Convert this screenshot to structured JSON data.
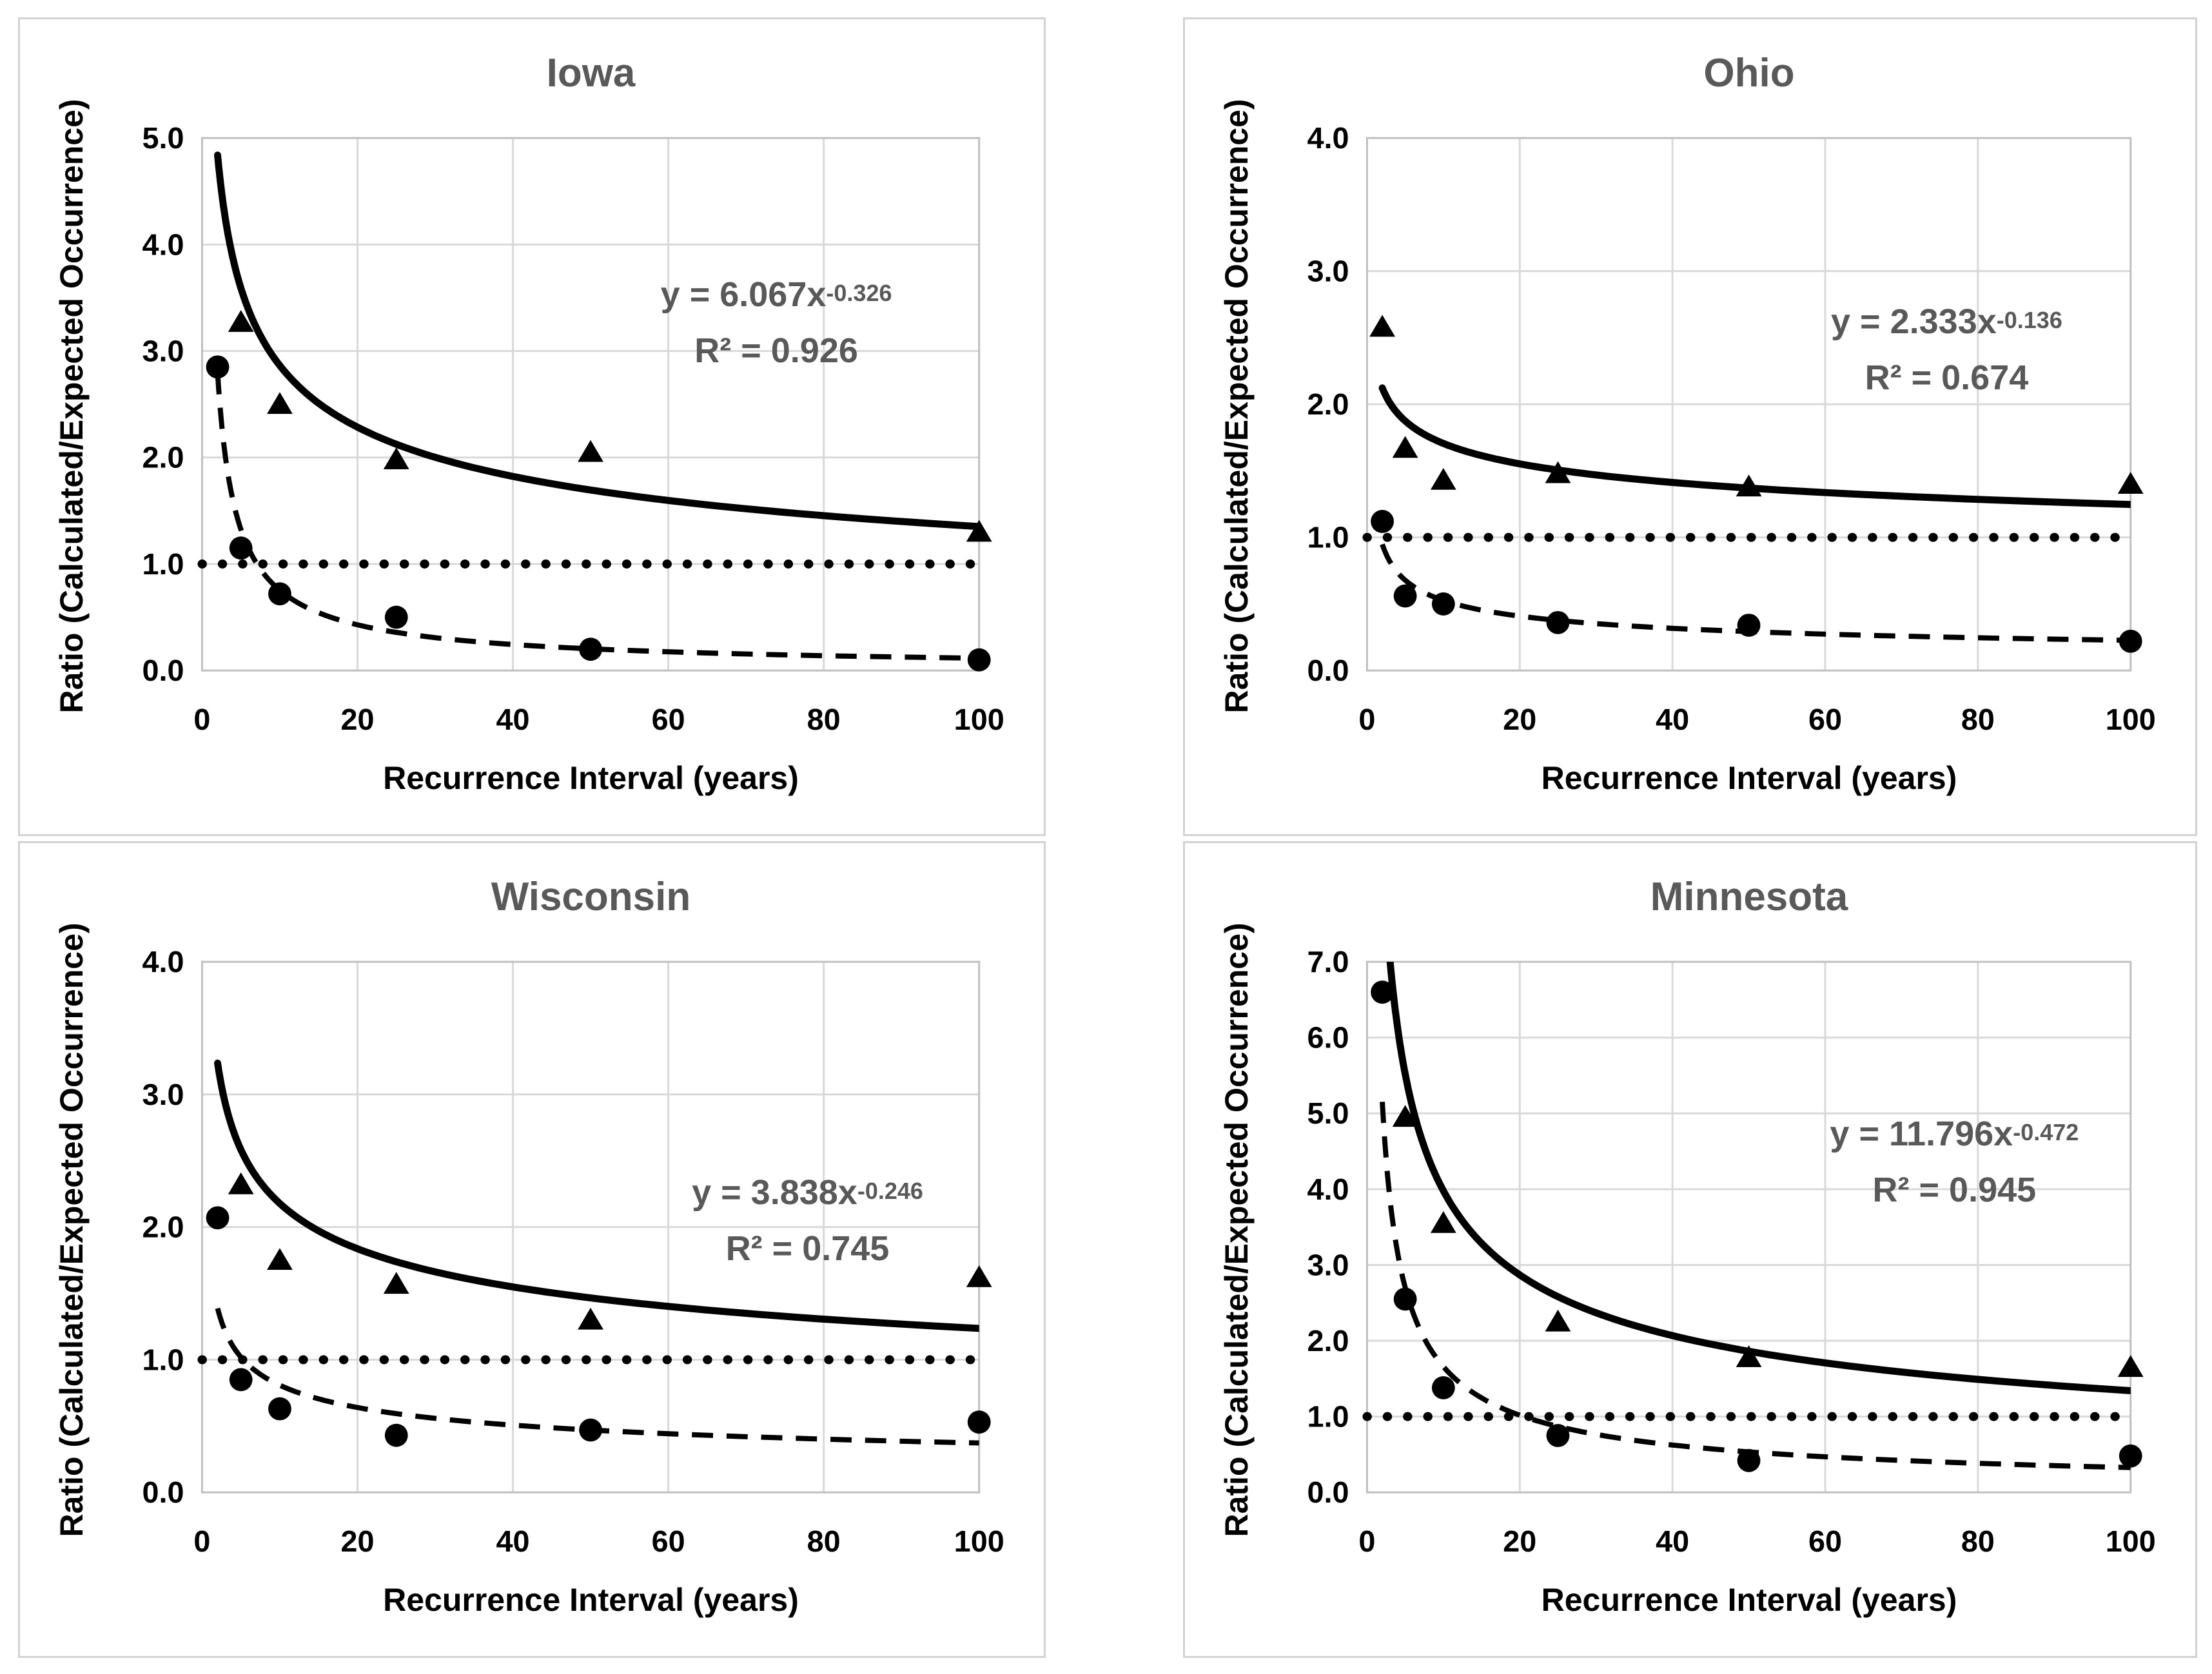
{
  "figure": {
    "background": "#ffffff",
    "panel_background": "#ffffff",
    "panel_border_color": "#d2d2d2",
    "grid_color": "#d9d9d9",
    "axis_border_color": "#bfbfbf",
    "series_color": "#000000",
    "label_color": "#000000",
    "title_color": "#595959"
  },
  "chart_data": [
    {
      "type": "scatter",
      "title": "Iowa",
      "xlabel": "Recurrence Interval (years)",
      "ylabel": "Ratio (Calculated/Expected Occurrence)",
      "xlim": [
        0,
        100
      ],
      "ylim": [
        0,
        5
      ],
      "xticks": [
        0,
        20,
        40,
        60,
        80,
        100
      ],
      "ytick_labels": [
        "0.0",
        "1.0",
        "2.0",
        "3.0",
        "4.0",
        "5.0"
      ],
      "grid": true,
      "reference_line_y": 1.0,
      "series": [
        {
          "name": "triangle-series",
          "marker": "triangle",
          "points": [
            [
              5,
              3.27
            ],
            [
              10,
              2.5
            ],
            [
              25,
              1.98
            ],
            [
              50,
              2.05
            ],
            [
              100,
              1.3
            ]
          ]
        },
        {
          "name": "circle-series",
          "marker": "circle",
          "points": [
            [
              2,
              2.85
            ],
            [
              5,
              1.15
            ],
            [
              10,
              0.72
            ],
            [
              25,
              0.5
            ],
            [
              50,
              0.2
            ],
            [
              100,
              0.1
            ]
          ]
        }
      ],
      "trendline": {
        "a": 6.067,
        "b": -0.326,
        "equation_base": "y = 6.067x",
        "equation_exponent": "-0.326",
        "r_squared": "R² = 0.926"
      }
    },
    {
      "type": "scatter",
      "title": "Ohio",
      "xlabel": "Recurrence Interval (years)",
      "ylabel": "Ratio (Calculated/Expected Occurrence)",
      "xlim": [
        0,
        100
      ],
      "ylim": [
        0,
        4
      ],
      "xticks": [
        0,
        20,
        40,
        60,
        80,
        100
      ],
      "ytick_labels": [
        "0.0",
        "1.0",
        "2.0",
        "3.0",
        "4.0"
      ],
      "grid": true,
      "reference_line_y": 1.0,
      "series": [
        {
          "name": "triangle-series",
          "marker": "triangle",
          "points": [
            [
              2,
              2.58
            ],
            [
              5,
              1.67
            ],
            [
              10,
              1.43
            ],
            [
              25,
              1.48
            ],
            [
              50,
              1.38
            ],
            [
              100,
              1.4
            ]
          ]
        },
        {
          "name": "circle-series",
          "marker": "circle",
          "points": [
            [
              2,
              1.12
            ],
            [
              5,
              0.56
            ],
            [
              10,
              0.5
            ],
            [
              25,
              0.36
            ],
            [
              50,
              0.34
            ],
            [
              100,
              0.22
            ]
          ]
        }
      ],
      "trendline": {
        "a": 2.333,
        "b": -0.136,
        "equation_base": "y = 2.333x",
        "equation_exponent": "-0.136",
        "r_squared": "R² = 0.674"
      }
    },
    {
      "type": "scatter",
      "title": "Wisconsin",
      "xlabel": "Recurrence Interval (years)",
      "ylabel": "Ratio (Calculated/Expected Occurrence)",
      "xlim": [
        0,
        100
      ],
      "ylim": [
        0,
        4
      ],
      "xticks": [
        0,
        20,
        40,
        60,
        80,
        100
      ],
      "ytick_labels": [
        "0.0",
        "1.0",
        "2.0",
        "3.0",
        "4.0"
      ],
      "grid": true,
      "reference_line_y": 1.0,
      "series": [
        {
          "name": "triangle-series",
          "marker": "triangle",
          "points": [
            [
              5,
              2.32
            ],
            [
              10,
              1.75
            ],
            [
              25,
              1.57
            ],
            [
              50,
              1.3
            ],
            [
              100,
              1.62
            ]
          ]
        },
        {
          "name": "circle-series",
          "marker": "circle",
          "points": [
            [
              2,
              2.07
            ],
            [
              5,
              0.85
            ],
            [
              10,
              0.63
            ],
            [
              25,
              0.43
            ],
            [
              50,
              0.47
            ],
            [
              100,
              0.53
            ]
          ]
        }
      ],
      "trendline": {
        "a": 3.838,
        "b": -0.246,
        "equation_base": "y = 3.838x",
        "equation_exponent": "-0.246",
        "r_squared": "R² = 0.745"
      }
    },
    {
      "type": "scatter",
      "title": "Minnesota",
      "xlabel": "Recurrence Interval (years)",
      "ylabel": "Ratio (Calculated/Expected Occurrence)",
      "xlim": [
        0,
        100
      ],
      "ylim": [
        0,
        7
      ],
      "xticks": [
        0,
        20,
        40,
        60,
        80,
        100
      ],
      "ytick_labels": [
        "0.0",
        "1.0",
        "2.0",
        "3.0",
        "4.0",
        "5.0",
        "6.0",
        "7.0"
      ],
      "grid": true,
      "reference_line_y": 1.0,
      "series": [
        {
          "name": "triangle-series",
          "marker": "triangle",
          "points": [
            [
              5,
              4.95
            ],
            [
              10,
              3.55
            ],
            [
              25,
              2.25
            ],
            [
              50,
              1.78
            ],
            [
              100,
              1.65
            ]
          ]
        },
        {
          "name": "circle-series",
          "marker": "circle",
          "points": [
            [
              2,
              6.6
            ],
            [
              5,
              2.55
            ],
            [
              10,
              1.38
            ],
            [
              25,
              0.75
            ],
            [
              50,
              0.42
            ],
            [
              100,
              0.48
            ]
          ]
        }
      ],
      "trendline": {
        "a": 11.796,
        "b": -0.472,
        "equation_base": "y = 11.796x",
        "equation_exponent": "-0.472",
        "r_squared": "R² = 0.945"
      }
    }
  ]
}
